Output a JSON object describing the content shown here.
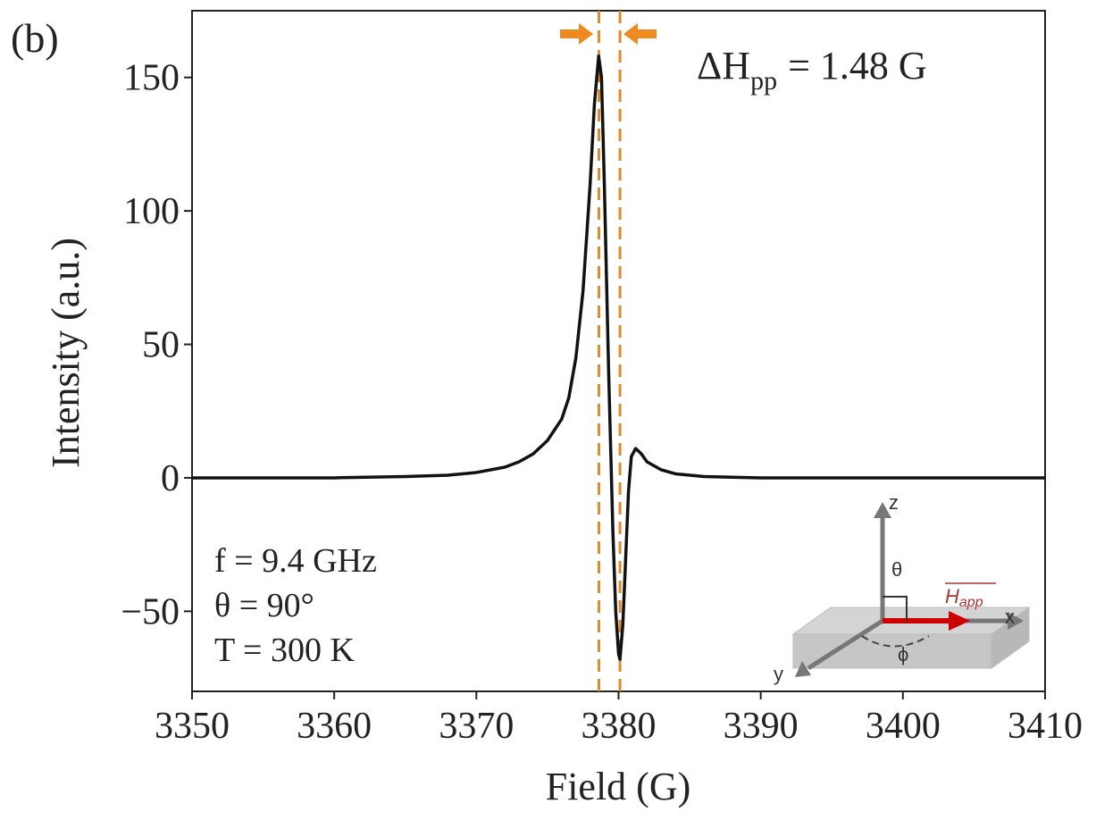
{
  "chart_data": {
    "type": "line",
    "panel_label": "(b)",
    "x_label": "Field (G)",
    "y_label": "Intensity (a.u.)",
    "x": [
      3350,
      3360,
      3365,
      3368,
      3370,
      3372,
      3373,
      3374,
      3375,
      3376,
      3376.5,
      3377,
      3377.5,
      3378,
      3378.3,
      3378.6,
      3378.8,
      3379,
      3379.3,
      3379.6,
      3379.8,
      3380,
      3380.1,
      3380.3,
      3380.5,
      3380.7,
      3380.9,
      3381.2,
      3381.6,
      3382,
      3383,
      3384,
      3386,
      3390,
      3400,
      3410
    ],
    "series": [
      {
        "color": "#111111",
        "values": [
          0,
          0,
          0.5,
          1,
          2,
          4,
          6,
          9,
          14,
          22,
          30,
          45,
          70,
          110,
          140,
          158,
          150,
          110,
          40,
          -20,
          -50,
          -66,
          -68,
          -55,
          -30,
          -5,
          8,
          11,
          9,
          6,
          3,
          1.5,
          0.5,
          0,
          0,
          0
        ]
      }
    ],
    "markers": [
      {
        "x": 3378.62,
        "color": "#e08a2c"
      },
      {
        "x": 3380.1,
        "color": "#e08a2c"
      }
    ],
    "xlim": [
      3350,
      3410
    ],
    "xticks": [
      3350,
      3360,
      3370,
      3380,
      3390,
      3400,
      3410
    ],
    "ylim": [
      -80,
      175
    ],
    "yticks": [
      -50,
      0,
      50,
      100,
      150
    ],
    "linewidth": {
      "main": "ΔH",
      "sub": "pp",
      "rest": "= 1.48 G"
    },
    "conditions": [
      "f = 9.4 GHz",
      "θ = 90°",
      "T = 300 K"
    ],
    "inset": {
      "z": "z",
      "theta": "θ",
      "x": "x",
      "y": "y",
      "phi": "ϕ",
      "field": "H",
      "field_sub": "app"
    }
  }
}
